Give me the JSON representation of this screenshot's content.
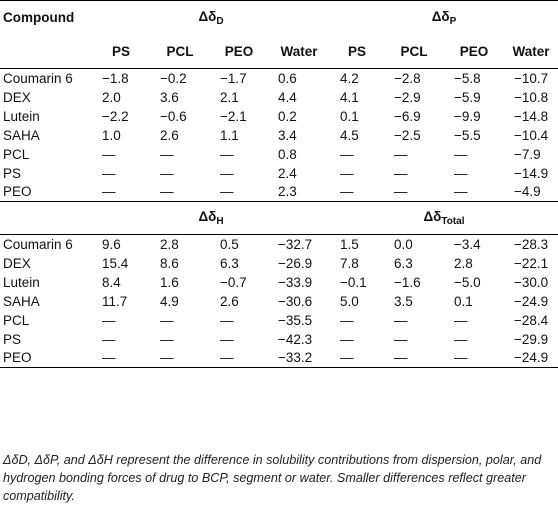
{
  "table": {
    "compound_header": "Compound",
    "delta_symbol": "Δδ",
    "groups_top": [
      {
        "sub": "D"
      },
      {
        "sub": "P"
      }
    ],
    "groups_bottom": [
      {
        "sub": "H"
      },
      {
        "sub": "Total"
      }
    ],
    "subheaders": [
      "PS",
      "PCL",
      "PEO",
      "Water",
      "PS",
      "PCL",
      "PEO",
      "Water"
    ],
    "rows_top": [
      {
        "name": "Coumarin 6",
        "values": [
          "−1.8",
          "−0.2",
          "−1.7",
          "0.6",
          "4.2",
          "−2.8",
          "−5.8",
          "−10.7"
        ]
      },
      {
        "name": "DEX",
        "values": [
          "2.0",
          "3.6",
          "2.1",
          "4.4",
          "4.1",
          "−2.9",
          "−5.9",
          "−10.8"
        ]
      },
      {
        "name": "Lutein",
        "values": [
          "−2.2",
          "−0.6",
          "−2.1",
          "0.2",
          "0.1",
          "−6.9",
          "−9.9",
          "−14.8"
        ]
      },
      {
        "name": "SAHA",
        "values": [
          "1.0",
          "2.6",
          "1.1",
          "3.4",
          "4.5",
          "−2.5",
          "−5.5",
          "−10.4"
        ]
      },
      {
        "name": "PCL",
        "values": [
          "—",
          "—",
          "—",
          "0.8",
          "—",
          "—",
          "—",
          "−7.9"
        ]
      },
      {
        "name": "PS",
        "values": [
          "—",
          "—",
          "—",
          "2.4",
          "—",
          "—",
          "—",
          "−14.9"
        ]
      },
      {
        "name": "PEO",
        "values": [
          "—",
          "—",
          "—",
          "2.3",
          "—",
          "—",
          "—",
          "−4.9"
        ]
      }
    ],
    "rows_bottom": [
      {
        "name": "Coumarin 6",
        "values": [
          "9.6",
          "2.8",
          "0.5",
          "−32.7",
          "1.5",
          "0.0",
          "−3.4",
          "−28.3"
        ]
      },
      {
        "name": "DEX",
        "values": [
          "15.4",
          "8.6",
          "6.3",
          "−26.9",
          "7.8",
          "6.3",
          "2.8",
          "−22.1"
        ]
      },
      {
        "name": "Lutein",
        "values": [
          "8.4",
          "1.6",
          "−0.7",
          "−33.9",
          "−0.1",
          "−1.6",
          "−5.0",
          "−30.0"
        ]
      },
      {
        "name": "SAHA",
        "values": [
          "11.7",
          "4.9",
          "2.6",
          "−30.6",
          "5.0",
          "3.5",
          "0.1",
          "−24.9"
        ]
      },
      {
        "name": "PCL",
        "values": [
          "—",
          "—",
          "—",
          "−35.5",
          "—",
          "—",
          "—",
          "−28.4"
        ]
      },
      {
        "name": "PS",
        "values": [
          "—",
          "—",
          "—",
          "−42.3",
          "—",
          "—",
          "—",
          "−29.9"
        ]
      },
      {
        "name": "PEO",
        "values": [
          "—",
          "—",
          "—",
          "−33.2",
          "—",
          "—",
          "—",
          "−24.9"
        ]
      }
    ]
  },
  "footnote": "ΔδD, ΔδP, and ΔδH represent the difference in solubility contributions from dispersion, polar, and hydrogen bonding forces of drug to BCP, segment or water. Smaller differences reflect greater compatibility."
}
